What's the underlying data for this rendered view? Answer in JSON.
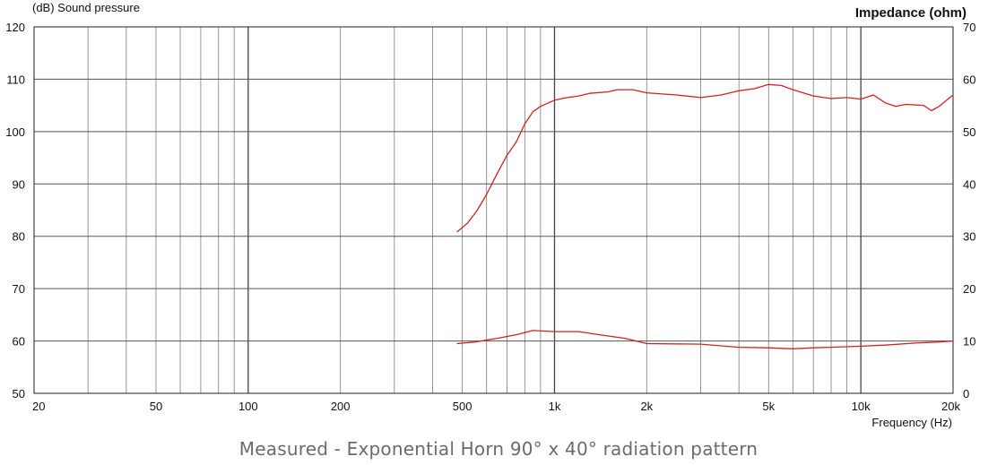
{
  "chart_data": {
    "type": "line",
    "left_axis_label": "(dB)  Sound pressure",
    "right_axis_label": "Impedance  (ohm)",
    "x_axis_label": "Frequency  (Hz)",
    "x_scale": "log",
    "xlim": [
      20,
      20000
    ],
    "ylim_left": [
      50,
      120
    ],
    "ylim_right": [
      0,
      70
    ],
    "grid": true,
    "x_tick_labels": [
      {
        "value": 20,
        "label": "20"
      },
      {
        "value": 50,
        "label": "50"
      },
      {
        "value": 100,
        "label": "100"
      },
      {
        "value": 200,
        "label": "200"
      },
      {
        "value": 500,
        "label": "500"
      },
      {
        "value": 1000,
        "label": "1k"
      },
      {
        "value": 2000,
        "label": "2k"
      },
      {
        "value": 5000,
        "label": "5k"
      },
      {
        "value": 10000,
        "label": "10k"
      },
      {
        "value": 20000,
        "label": "20k"
      }
    ],
    "y_left_ticks": [
      "50",
      "60",
      "70",
      "80",
      "90",
      "100",
      "110",
      "120"
    ],
    "y_right_ticks": [
      "0",
      "10",
      "20",
      "30",
      "40",
      "50",
      "60",
      "70"
    ],
    "series": [
      {
        "axis": "left",
        "color": "#d62020",
        "points": [
          [
            480,
            80.8
          ],
          [
            520,
            82.5
          ],
          [
            560,
            85
          ],
          [
            600,
            88
          ],
          [
            650,
            92
          ],
          [
            700,
            95.5
          ],
          [
            750,
            98
          ],
          [
            800,
            101.5
          ],
          [
            850,
            103.8
          ],
          [
            900,
            104.8
          ],
          [
            1000,
            106
          ],
          [
            1100,
            106.5
          ],
          [
            1200,
            106.8
          ],
          [
            1300,
            107.3
          ],
          [
            1500,
            107.6
          ],
          [
            1600,
            108
          ],
          [
            1800,
            108
          ],
          [
            2000,
            107.4
          ],
          [
            2500,
            107
          ],
          [
            3000,
            106.5
          ],
          [
            3500,
            107
          ],
          [
            4000,
            107.8
          ],
          [
            4500,
            108.2
          ],
          [
            5000,
            109
          ],
          [
            5500,
            108.8
          ],
          [
            6000,
            108
          ],
          [
            7000,
            106.8
          ],
          [
            8000,
            106.3
          ],
          [
            9000,
            106.5
          ],
          [
            10000,
            106.2
          ],
          [
            11000,
            107
          ],
          [
            12000,
            105.5
          ],
          [
            13000,
            104.8
          ],
          [
            14000,
            105.2
          ],
          [
            16000,
            105
          ],
          [
            17000,
            104
          ],
          [
            18000,
            104.8
          ],
          [
            20000,
            107
          ]
        ]
      },
      {
        "axis": "right",
        "color": "#d62020",
        "points": [
          [
            480,
            9.5
          ],
          [
            550,
            9.8
          ],
          [
            650,
            10.5
          ],
          [
            750,
            11.2
          ],
          [
            850,
            12
          ],
          [
            1000,
            11.8
          ],
          [
            1200,
            11.8
          ],
          [
            1400,
            11.2
          ],
          [
            1700,
            10.5
          ],
          [
            2000,
            9.5
          ],
          [
            3000,
            9.4
          ],
          [
            4000,
            8.8
          ],
          [
            5000,
            8.7
          ],
          [
            5500,
            8.6
          ],
          [
            6000,
            8.5
          ],
          [
            7000,
            8.7
          ],
          [
            8000,
            8.8
          ],
          [
            10000,
            9
          ],
          [
            12000,
            9.2
          ],
          [
            15000,
            9.6
          ],
          [
            18000,
            9.8
          ],
          [
            20000,
            10
          ]
        ]
      }
    ]
  },
  "caption": "Measured - Exponential Horn 90° x 40° radiation pattern"
}
